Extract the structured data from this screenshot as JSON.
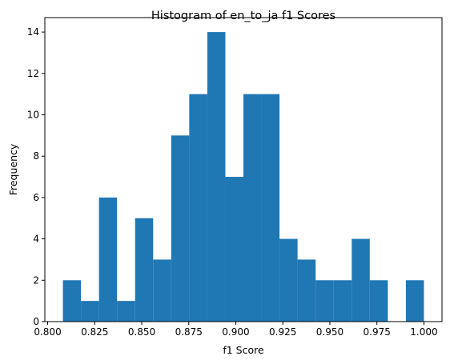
{
  "chart_data": {
    "type": "bar",
    "title": "Histogram of en_to_ja f1 Scores",
    "xlabel": "f1 Score",
    "ylabel": "Frequency",
    "bin_range": [
      0.8081,
      1.0
    ],
    "bin_count": 20,
    "values": [
      2,
      1,
      6,
      1,
      5,
      3,
      9,
      11,
      14,
      7,
      11,
      11,
      4,
      3,
      2,
      2,
      4,
      2,
      0,
      2
    ],
    "xlim": [
      0.7985,
      1.0096
    ],
    "ylim": [
      0,
      14.7
    ],
    "xticks": [
      "0.800",
      "0.825",
      "0.850",
      "0.875",
      "0.900",
      "0.925",
      "0.950",
      "0.975",
      "1.000"
    ],
    "yticks": [
      "0",
      "2",
      "4",
      "6",
      "8",
      "10",
      "12",
      "14"
    ],
    "bar_color": "#1f77b4",
    "grid": false
  }
}
